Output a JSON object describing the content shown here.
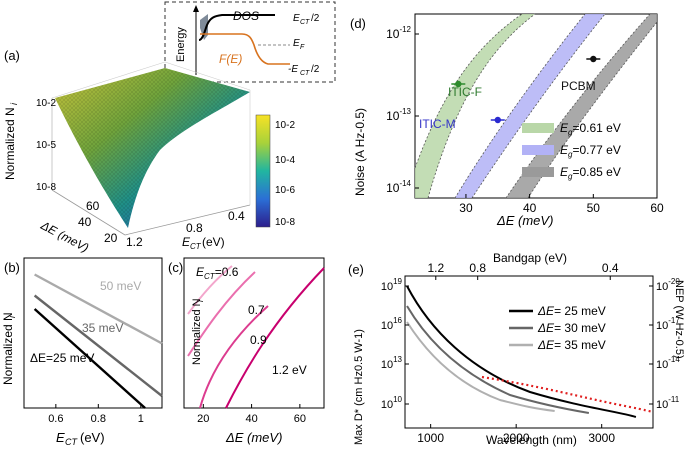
{
  "panels": {
    "a": {
      "tag": "(a)",
      "inset_ylabel": "Energy",
      "inset_dos": "DOS",
      "inset_fe": "F(E)",
      "inset_ect2": "E",
      "inset_ect2_sub": "CT",
      "inset_ect2_tail": "/2",
      "inset_ef": "E",
      "inset_ef_sub": "F",
      "inset_mect2": "-E",
      "inset_mect2_sub": "CT",
      "inset_mect2_tail": "/2",
      "zlabel": "Normalized N",
      "zlabel_sub": "i",
      "xlabel": "E",
      "xlabel_sub": "CT",
      "xlabel_tail": " (eV)",
      "ylabel": "ΔE (meV)",
      "colorbar_ticks": [
        "10-2",
        "10-4",
        "10-6",
        "10-8"
      ]
    },
    "b": {
      "tag": "(b)"
    },
    "c": {
      "tag": "(c)"
    },
    "d": {
      "tag": "(d)"
    },
    "e": {
      "tag": "(e)"
    }
  },
  "chart_data": [
    {
      "panel": "a",
      "type": "surface",
      "x_label": "E_CT (eV)",
      "y_label": "ΔE (meV)",
      "z_label": "Normalized N_i",
      "x_ticks": [
        "0.4",
        "0.8",
        "1.2"
      ],
      "y_ticks": [
        "20",
        "40",
        "60"
      ],
      "z_ticks": [
        "10-2",
        "10-5",
        "10-8"
      ],
      "colorbar": {
        "min": "10-8",
        "max": "10-2",
        "ticks": [
          "10-2",
          "10-4",
          "10-6",
          "10-8"
        ],
        "colormap": "viridis-like"
      }
    },
    {
      "panel": "b",
      "type": "line",
      "xlabel": "E_CT (eV)",
      "ylabel": "Normalized N_i",
      "xlim": [
        0.45,
        1.1
      ],
      "x_ticks": [
        0.6,
        0.8,
        1.0
      ],
      "x_tick_labels": [
        "0.6",
        "0.8",
        "1"
      ],
      "log_y": true,
      "series": [
        {
          "name": "ΔE=25 meV",
          "color": "#000000",
          "x": [
            0.5,
            1.02
          ],
          "y": [
            0.34,
            1.0
          ]
        },
        {
          "name": "35 meV",
          "color": "#666666",
          "x": [
            0.5,
            1.1
          ],
          "y": [
            0.25,
            0.92
          ]
        },
        {
          "name": "50 meV",
          "color": "#aaaaaa",
          "x": [
            0.5,
            1.1
          ],
          "y": [
            0.11,
            0.57
          ]
        }
      ],
      "labels": [
        {
          "text": "50 meV",
          "series": "50 meV"
        },
        {
          "text": "35 meV",
          "series": "35 meV"
        },
        {
          "text": "ΔE=25 meV",
          "series": "ΔE=25 meV"
        }
      ]
    },
    {
      "panel": "c",
      "type": "line",
      "xlabel": "ΔE (meV)",
      "ylabel": "Normalized N_i",
      "xlim": [
        12,
        70
      ],
      "x_ticks": [
        20,
        40,
        60
      ],
      "log_y": true,
      "series": [
        {
          "name": "E_CT=0.6",
          "label": "E_CT=0.6",
          "color": "#f3a6cc"
        },
        {
          "name": "0.7",
          "label": "0.7",
          "color": "#ea6fae"
        },
        {
          "name": "0.9",
          "label": "0.9",
          "color": "#dc3c8f"
        },
        {
          "name": "1.2 eV",
          "label": "1.2 eV",
          "color": "#c8006e"
        }
      ]
    },
    {
      "panel": "d",
      "type": "area",
      "xlabel": "ΔE (meV)",
      "ylabel": "Noise (A Hz-0.5)",
      "xlim": [
        22,
        60
      ],
      "x_ticks": [
        30,
        40,
        50,
        60
      ],
      "log_y": true,
      "ylim": [
        "10-14",
        "10-12"
      ],
      "y_ticks": [
        "10-12",
        "10-13",
        "10-14"
      ],
      "series": [
        {
          "name": "Eg=0.61 eV",
          "color": "#b9d7a8"
        },
        {
          "name": "Eg=0.77 eV",
          "color": "#b2b2f6"
        },
        {
          "name": "Eg=0.85 eV",
          "color": "#9a9a9a"
        }
      ],
      "points": [
        {
          "label": "ITIC-F",
          "x": 28.8,
          "y": "2.7e-13",
          "color": "#2e8b2e",
          "label_color": "#2e7a2e"
        },
        {
          "label": "ITIC-M",
          "x": 35,
          "y": "9e-14",
          "color": "#2a2ad0",
          "label_color": "#3535c8"
        },
        {
          "label": "PCBM",
          "x": 50,
          "y": "5.6e-13",
          "color": "#111111",
          "label_color": "#111111"
        }
      ],
      "legend": [
        {
          "pre": "E",
          "sub": "g",
          "post": "=0.61 eV"
        },
        {
          "pre": "E",
          "sub": "g",
          "post": "=0.77 eV"
        },
        {
          "pre": "E",
          "sub": "g",
          "post": "=0.85 eV"
        }
      ]
    },
    {
      "panel": "e",
      "type": "line",
      "xlabel": "Wavelength (nm)",
      "top_xlabel": "Bandgap (eV)",
      "top_ticks": [
        "1.2",
        "0.8",
        "0.4"
      ],
      "ylabel_left": "Max D* (cm Hz0.5 W-1)",
      "ylabel_right": "NEP (W Hz-0.5)",
      "xlim": [
        700,
        3600
      ],
      "x_ticks": [
        1000,
        2000,
        3000
      ],
      "log_y": true,
      "y_ticks_left": [
        "1019",
        "1016",
        "1013",
        "1010"
      ],
      "y_ticks_right": [
        "10-20",
        "10-17",
        "10-14",
        "10-11"
      ],
      "series": [
        {
          "name": "ΔE= 25 meV",
          "color": "#000000",
          "x_end": 3400
        },
        {
          "name": "ΔE= 30 meV",
          "color": "#666666",
          "x_end": 2850
        },
        {
          "name": "ΔE= 35 meV",
          "color": "#b0b0b0",
          "x_end": 2450
        },
        {
          "name": "NEP",
          "color": "#e02020",
          "style": "dotted",
          "x_start": 1600,
          "x_end": 3600
        }
      ],
      "legend": [
        {
          "pre": "ΔE",
          "post": "= 25 meV"
        },
        {
          "pre": "ΔE",
          "post": "= 30 meV"
        },
        {
          "pre": "ΔE",
          "post": "= 35 meV"
        }
      ]
    }
  ]
}
